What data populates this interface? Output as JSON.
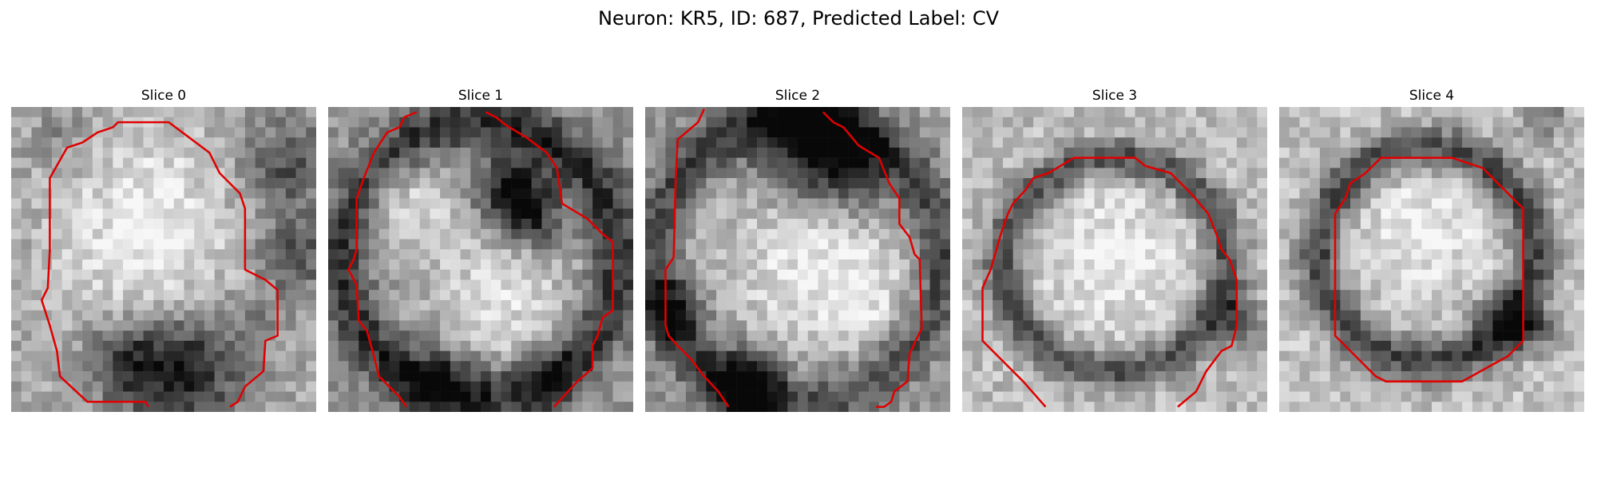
{
  "figure": {
    "title": "Neuron: KR5, ID: 687, Predicted Label: CV"
  },
  "slices": [
    {
      "title": "Slice 0"
    },
    {
      "title": "Slice 1"
    },
    {
      "title": "Slice 2"
    },
    {
      "title": "Slice 3"
    },
    {
      "title": "Slice 4"
    }
  ],
  "colors": {
    "contour": "#e00000",
    "background": "#ffffff"
  }
}
